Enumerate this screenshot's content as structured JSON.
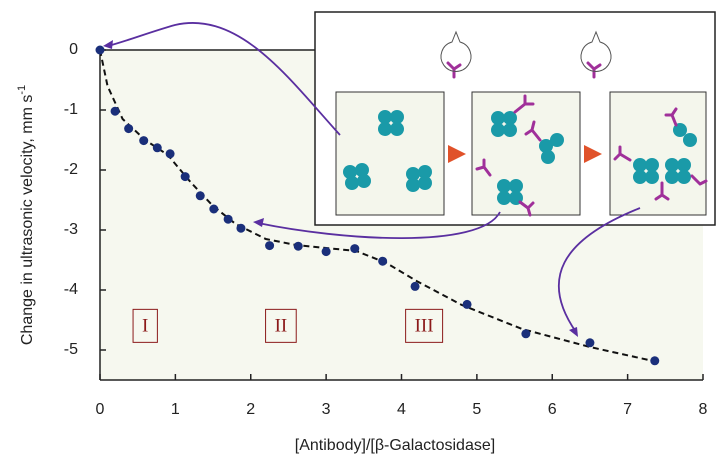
{
  "chart_data": {
    "type": "scatter",
    "xlabel": "[Antibody]/[β-Galactosidase]",
    "ylabel": "Change in ultrasonic velocity, mm s",
    "ylabel_superscript": "-1",
    "x": [
      0,
      0.2,
      0.38,
      0.58,
      0.76,
      0.93,
      1.13,
      1.33,
      1.51,
      1.7,
      1.87,
      2.25,
      2.63,
      3.0,
      3.38,
      3.75,
      4.18,
      4.87,
      5.65,
      6.5,
      7.36
    ],
    "series": [
      {
        "color": "#1a2f7a",
        "values": [
          0,
          -1.02,
          -1.31,
          -1.51,
          -1.63,
          -1.73,
          -2.11,
          -2.43,
          -2.65,
          -2.82,
          -2.97,
          -3.26,
          -3.27,
          -3.36,
          -3.31,
          -3.52,
          -3.94,
          -4.24,
          -4.73,
          -4.88,
          -5.18
        ]
      }
    ],
    "fit_line": {
      "color": "#111111",
      "x": [
        0,
        0.1,
        0.3,
        0.6,
        0.9,
        1.2,
        1.5,
        1.8,
        2.2,
        2.6,
        3.0,
        3.4,
        3.8,
        4.2,
        4.8,
        5.6,
        6.5,
        7.4
      ],
      "values": [
        0,
        -0.6,
        -1.15,
        -1.5,
        -1.75,
        -2.2,
        -2.6,
        -2.9,
        -3.15,
        -3.25,
        -3.3,
        -3.35,
        -3.55,
        -3.85,
        -4.25,
        -4.65,
        -4.95,
        -5.2
      ]
    },
    "annotations": [
      "I",
      "II",
      "III"
    ],
    "xlim": [
      0,
      8
    ],
    "ylim": [
      -5.5,
      0
    ],
    "xticks": [
      0,
      1,
      2,
      3,
      4,
      5,
      6,
      7,
      8
    ],
    "yticks": [
      0,
      -1,
      -2,
      -3,
      -4,
      -5
    ]
  }
}
